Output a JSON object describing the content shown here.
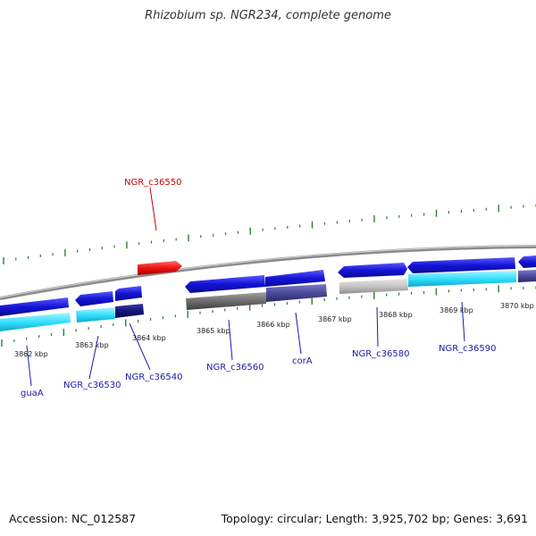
{
  "title": "Rhizobium sp. NGR234, complete genome",
  "footer": {
    "accession": "Accession: NC_012587",
    "topology": "Topology: circular; Length: 3,925,702 bp; Genes: 3,691"
  },
  "colors": {
    "backbone": "#8a8a8a",
    "tick": "#2e7d32",
    "label_blue": "#1a1aa6",
    "label_red": "#cc0000",
    "gene_blue": "#1414d8",
    "gene_red": "#ee1111",
    "gene_cyan": "#33e0ff",
    "gene_navy": "#15157a",
    "gene_gray": "#6e6e6e",
    "gene_slate": "#4a4a9a",
    "gene_lightgray": "#c4c4c4"
  },
  "kbp_ticks": [
    {
      "label": "3862 kbp"
    },
    {
      "label": "3863 kbp"
    },
    {
      "label": "3864 kbp"
    },
    {
      "label": "3865 kbp"
    },
    {
      "label": "3866 kbp"
    },
    {
      "label": "3867 kbp"
    },
    {
      "label": "3868 kbp"
    },
    {
      "label": "3869 kbp"
    },
    {
      "label": "3870 kbp"
    }
  ],
  "gene_labels": [
    {
      "name": "guaA",
      "color": "blue"
    },
    {
      "name": "NGR_c36530",
      "color": "blue"
    },
    {
      "name": "NGR_c36540",
      "color": "blue"
    },
    {
      "name": "NGR_c36550",
      "color": "red"
    },
    {
      "name": "NGR_c36560",
      "color": "blue"
    },
    {
      "name": "corA",
      "color": "blue"
    },
    {
      "name": "NGR_c36580",
      "color": "blue"
    },
    {
      "name": "NGR_c36590",
      "color": "blue"
    }
  ]
}
